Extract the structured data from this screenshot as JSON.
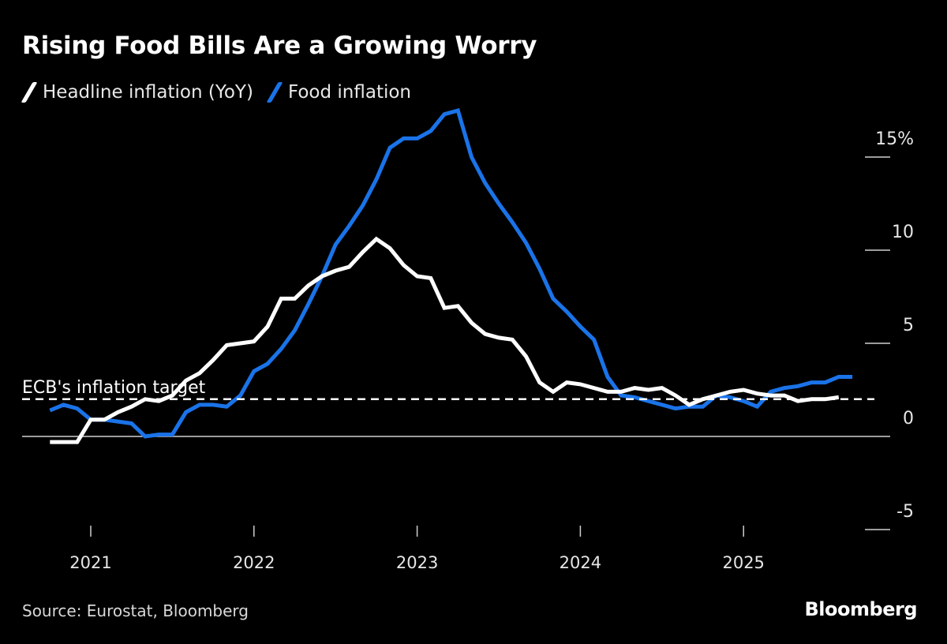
{
  "title": "Rising Food Bills Are a Growing Worry",
  "legend": [
    {
      "label": "Headline inflation (YoY)",
      "color": "#ffffff"
    },
    {
      "label": "Food inflation",
      "color": "#1a73e8"
    }
  ],
  "source": "Source: Eurostat, Bloomberg",
  "brand": "Bloomberg",
  "chart_data": {
    "type": "line",
    "title": "Rising Food Bills Are a Growing Worry",
    "xlabel": "",
    "ylabel": "%",
    "x_start": "2020-10",
    "x_frequency": "monthly",
    "x_ticks": [
      "2021",
      "2022",
      "2023",
      "2024",
      "2025"
    ],
    "y_ticks": [
      -5,
      0,
      5,
      10,
      15
    ],
    "y_tick_labels": [
      "-5",
      "0",
      "5",
      "10",
      "15%"
    ],
    "ylim": [
      -5.5,
      16.5
    ],
    "grid": false,
    "legend_position": "top-left",
    "reference_line": {
      "value": 2.0,
      "label": "ECB's inflation target",
      "style": "dashed"
    },
    "zero_line": true,
    "series": [
      {
        "name": "Headline inflation (YoY)",
        "color": "#ffffff",
        "values": [
          -0.3,
          -0.3,
          -0.3,
          0.9,
          0.9,
          1.3,
          1.6,
          2.0,
          1.9,
          2.2,
          3.0,
          3.4,
          4.1,
          4.9,
          5.0,
          5.1,
          5.9,
          7.4,
          7.4,
          8.1,
          8.6,
          8.9,
          9.1,
          9.9,
          10.6,
          10.1,
          9.2,
          8.6,
          8.5,
          6.9,
          7.0,
          6.1,
          5.5,
          5.3,
          5.2,
          4.3,
          2.9,
          2.4,
          2.9,
          2.8,
          2.6,
          2.4,
          2.4,
          2.6,
          2.5,
          2.6,
          2.2,
          1.7,
          2.0,
          2.2,
          2.4,
          2.5,
          2.3,
          2.2,
          2.2,
          1.9,
          2.0,
          2.0,
          2.1
        ]
      },
      {
        "name": "Food inflation",
        "color": "#1a73e8",
        "values": [
          1.4,
          1.7,
          1.5,
          0.9,
          0.9,
          0.8,
          0.7,
          0.0,
          0.1,
          0.1,
          1.3,
          1.7,
          1.7,
          1.6,
          2.2,
          3.5,
          3.9,
          4.7,
          5.7,
          7.1,
          8.6,
          10.3,
          11.3,
          12.4,
          13.8,
          15.5,
          16.0,
          16.0,
          16.4,
          17.3,
          17.5,
          15.0,
          13.6,
          12.5,
          11.5,
          10.4,
          9.0,
          7.4,
          6.7,
          5.9,
          5.2,
          3.2,
          2.2,
          2.1,
          1.9,
          1.7,
          1.5,
          1.6,
          1.6,
          2.2,
          2.1,
          1.9,
          1.6,
          2.4,
          2.6,
          2.7,
          2.9,
          2.9,
          3.2,
          3.2
        ]
      }
    ]
  }
}
